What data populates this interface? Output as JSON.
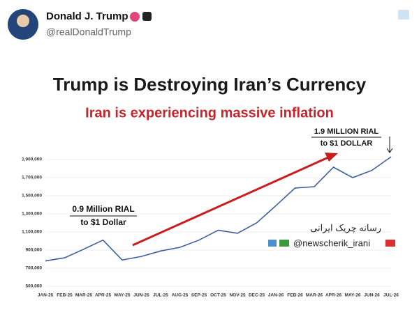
{
  "post": {
    "name": "Donald J. Trump",
    "handle": "@realDonaldTrump"
  },
  "chart_data": {
    "type": "line",
    "title": "Trump is Destroying Iran’s Currency",
    "subtitle": "Iran is experiencing massive inflation",
    "annotations": [
      [
        "0.9 Million RIAL",
        "to $1 Dollar"
      ],
      [
        "1.9 MILLION RIAL",
        "to $1 DOLLAR"
      ]
    ],
    "watermark": [
      "رسانه چریک ایرانی",
      "@newscherik_irani"
    ],
    "categories": [
      "JAN-25",
      "FEB-25",
      "MAR-25",
      "APR-25",
      "MAY-25",
      "JUN-25",
      "JUL-25",
      "AUG-25",
      "SEP-25",
      "OCT-25",
      "NOV-25",
      "DEC-25",
      "JAN-26",
      "FEB-26",
      "MAR-26",
      "APR-26",
      "MAY-26",
      "JUN-26",
      "JUL-26"
    ],
    "series": [
      {
        "color": "#3b5f9e",
        "values": [
          780000,
          815000,
          910000,
          1010000,
          790000,
          830000,
          890000,
          930000,
          1010000,
          1120000,
          1085000,
          1200000,
          1390000,
          1585000,
          1600000,
          1815000,
          1700000,
          1780000,
          1930000
        ]
      }
    ],
    "ylim": [
      500000,
      2000000
    ],
    "yticks": [
      {
        "value": 500000,
        "label": "500,000"
      },
      {
        "value": 700000,
        "label": "700,000"
      },
      {
        "value": 900000,
        "label": "900,000"
      },
      {
        "value": 1100000,
        "label": "1,100,000"
      },
      {
        "value": 1300000,
        "label": "1,300,000"
      },
      {
        "value": 1500000,
        "label": "1,500,000"
      },
      {
        "value": 1700000,
        "label": "1,700,000"
      },
      {
        "value": 1900000,
        "label": "1,900,000"
      }
    ],
    "grid": true
  }
}
